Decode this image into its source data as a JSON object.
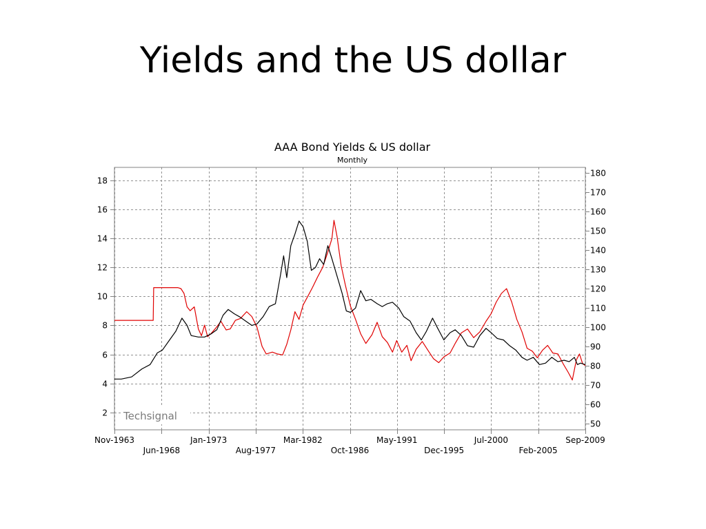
{
  "slide": {
    "title": "Yields and the US dollar"
  },
  "chart_data": {
    "type": "line",
    "title": "AAA Bond Yields & US dollar",
    "subtitle": "Monthly",
    "watermark": "Techsignal",
    "x_range": [
      1963.83,
      2009.67
    ],
    "x_ticks_row1": [
      {
        "label": "Nov-1963",
        "x": 1963.83
      },
      {
        "label": "Jan-1973",
        "x": 1973.0
      },
      {
        "label": "Mar-1982",
        "x": 1982.17
      },
      {
        "label": "May-1991",
        "x": 1991.33
      },
      {
        "label": "Jul-2000",
        "x": 2000.5
      },
      {
        "label": "Sep-2009",
        "x": 2009.67
      }
    ],
    "x_ticks_row2": [
      {
        "label": "Jun-1968",
        "x": 1968.42
      },
      {
        "label": "Aug-1977",
        "x": 1977.58
      },
      {
        "label": "Oct-1986",
        "x": 1986.75
      },
      {
        "label": "Dec-1995",
        "x": 1995.92
      },
      {
        "label": "Feb-2005",
        "x": 2005.08
      }
    ],
    "y_left": {
      "min": 0.8,
      "max": 18.9,
      "ticks": [
        2,
        4,
        6,
        8,
        10,
        12,
        14,
        16,
        18
      ]
    },
    "y_right": {
      "min": 46.6,
      "max": 183.0,
      "ticks": [
        50,
        60,
        70,
        80,
        90,
        100,
        110,
        120,
        130,
        140,
        150,
        160,
        170,
        180
      ]
    },
    "grid": true,
    "colors": {
      "bond_yield": "#000000",
      "us_dollar": "#e00000",
      "grid": "#909090",
      "axis": "#808080"
    },
    "series": [
      {
        "axis": "left",
        "color": "#000000",
        "points": [
          [
            1963.83,
            4.3
          ],
          [
            1964.5,
            4.3
          ],
          [
            1965.5,
            4.45
          ],
          [
            1966.5,
            5.0
          ],
          [
            1967.3,
            5.3
          ],
          [
            1968.0,
            6.1
          ],
          [
            1968.5,
            6.3
          ],
          [
            1969.2,
            7.0
          ],
          [
            1969.8,
            7.6
          ],
          [
            1970.4,
            8.5
          ],
          [
            1970.9,
            8.0
          ],
          [
            1971.3,
            7.3
          ],
          [
            1972.0,
            7.2
          ],
          [
            1972.6,
            7.2
          ],
          [
            1973.2,
            7.4
          ],
          [
            1973.8,
            7.7
          ],
          [
            1974.4,
            8.7
          ],
          [
            1974.9,
            9.1
          ],
          [
            1975.5,
            8.8
          ],
          [
            1976.0,
            8.6
          ],
          [
            1976.6,
            8.3
          ],
          [
            1977.2,
            8.0
          ],
          [
            1977.7,
            8.1
          ],
          [
            1978.3,
            8.6
          ],
          [
            1978.9,
            9.3
          ],
          [
            1979.5,
            9.5
          ],
          [
            1980.0,
            11.5
          ],
          [
            1980.3,
            12.8
          ],
          [
            1980.6,
            11.3
          ],
          [
            1981.0,
            13.5
          ],
          [
            1981.4,
            14.3
          ],
          [
            1981.8,
            15.2
          ],
          [
            1982.2,
            14.8
          ],
          [
            1982.6,
            13.8
          ],
          [
            1983.0,
            11.8
          ],
          [
            1983.4,
            12.0
          ],
          [
            1983.8,
            12.6
          ],
          [
            1984.2,
            12.2
          ],
          [
            1984.6,
            13.5
          ],
          [
            1985.0,
            12.6
          ],
          [
            1985.5,
            11.4
          ],
          [
            1986.0,
            10.2
          ],
          [
            1986.4,
            9.0
          ],
          [
            1986.8,
            8.9
          ],
          [
            1987.3,
            9.2
          ],
          [
            1987.8,
            10.4
          ],
          [
            1988.3,
            9.7
          ],
          [
            1988.8,
            9.8
          ],
          [
            1989.4,
            9.5
          ],
          [
            1989.9,
            9.3
          ],
          [
            1990.4,
            9.5
          ],
          [
            1990.9,
            9.6
          ],
          [
            1991.5,
            9.2
          ],
          [
            1992.0,
            8.6
          ],
          [
            1992.6,
            8.3
          ],
          [
            1993.2,
            7.5
          ],
          [
            1993.7,
            7.0
          ],
          [
            1994.2,
            7.6
          ],
          [
            1994.8,
            8.5
          ],
          [
            1995.3,
            7.8
          ],
          [
            1995.9,
            7.0
          ],
          [
            1996.5,
            7.5
          ],
          [
            1997.0,
            7.7
          ],
          [
            1997.6,
            7.3
          ],
          [
            1998.2,
            6.6
          ],
          [
            1998.8,
            6.5
          ],
          [
            1999.4,
            7.3
          ],
          [
            2000.0,
            7.8
          ],
          [
            2000.5,
            7.5
          ],
          [
            2001.1,
            7.1
          ],
          [
            2001.7,
            7.0
          ],
          [
            2002.3,
            6.6
          ],
          [
            2002.9,
            6.3
          ],
          [
            2003.5,
            5.8
          ],
          [
            2004.0,
            5.6
          ],
          [
            2004.6,
            5.8
          ],
          [
            2005.2,
            5.3
          ],
          [
            2005.8,
            5.4
          ],
          [
            2006.4,
            5.8
          ],
          [
            2007.0,
            5.5
          ],
          [
            2007.6,
            5.6
          ],
          [
            2008.1,
            5.5
          ],
          [
            2008.6,
            5.8
          ],
          [
            2008.9,
            5.3
          ],
          [
            2009.2,
            5.4
          ],
          [
            2009.67,
            5.3
          ]
        ]
      },
      {
        "axis": "right",
        "color": "#e00000",
        "points": [
          [
            1963.83,
            103.5
          ],
          [
            1967.6,
            103.5
          ],
          [
            1967.65,
            120.5
          ],
          [
            1970.0,
            120.5
          ],
          [
            1970.3,
            120.0
          ],
          [
            1970.6,
            117.5
          ],
          [
            1970.9,
            110.5
          ],
          [
            1971.2,
            108.5
          ],
          [
            1971.6,
            110.5
          ],
          [
            1972.0,
            99.0
          ],
          [
            1972.3,
            95.5
          ],
          [
            1972.6,
            101.0
          ],
          [
            1972.9,
            95.0
          ],
          [
            1973.3,
            97.0
          ],
          [
            1973.7,
            99.5
          ],
          [
            1974.2,
            103.0
          ],
          [
            1974.7,
            98.5
          ],
          [
            1975.1,
            99.0
          ],
          [
            1975.6,
            103.5
          ],
          [
            1976.1,
            104.5
          ],
          [
            1976.7,
            108.0
          ],
          [
            1977.2,
            105.5
          ],
          [
            1977.7,
            100.0
          ],
          [
            1978.2,
            90.0
          ],
          [
            1978.6,
            86.0
          ],
          [
            1979.2,
            87.0
          ],
          [
            1979.7,
            86.0
          ],
          [
            1980.2,
            85.5
          ],
          [
            1980.6,
            91.0
          ],
          [
            1981.0,
            98.5
          ],
          [
            1981.4,
            108.0
          ],
          [
            1981.8,
            104.0
          ],
          [
            1982.2,
            111.5
          ],
          [
            1982.7,
            116.5
          ],
          [
            1983.1,
            120.5
          ],
          [
            1983.6,
            126.0
          ],
          [
            1984.1,
            131.0
          ],
          [
            1984.6,
            139.0
          ],
          [
            1985.0,
            146.0
          ],
          [
            1985.2,
            155.5
          ],
          [
            1985.5,
            147.0
          ],
          [
            1985.9,
            132.0
          ],
          [
            1986.3,
            122.0
          ],
          [
            1986.8,
            111.0
          ],
          [
            1987.3,
            104.0
          ],
          [
            1987.8,
            96.5
          ],
          [
            1988.3,
            91.5
          ],
          [
            1988.9,
            96.0
          ],
          [
            1989.4,
            102.5
          ],
          [
            1989.9,
            95.0
          ],
          [
            1990.4,
            92.0
          ],
          [
            1990.9,
            87.0
          ],
          [
            1991.3,
            93.0
          ],
          [
            1991.8,
            87.0
          ],
          [
            1992.3,
            90.5
          ],
          [
            1992.7,
            82.5
          ],
          [
            1993.2,
            88.5
          ],
          [
            1993.8,
            92.5
          ],
          [
            1994.4,
            87.5
          ],
          [
            1994.9,
            83.5
          ],
          [
            1995.4,
            81.5
          ],
          [
            1995.9,
            84.5
          ],
          [
            1996.5,
            86.5
          ],
          [
            1997.0,
            91.5
          ],
          [
            1997.6,
            97.0
          ],
          [
            1998.2,
            99.0
          ],
          [
            1998.8,
            94.5
          ],
          [
            1999.4,
            97.5
          ],
          [
            2000.0,
            103.0
          ],
          [
            2000.5,
            107.0
          ],
          [
            2001.0,
            113.0
          ],
          [
            2001.5,
            117.5
          ],
          [
            2002.0,
            120.0
          ],
          [
            2002.5,
            113.0
          ],
          [
            2003.0,
            104.0
          ],
          [
            2003.5,
            97.5
          ],
          [
            2004.0,
            89.0
          ],
          [
            2004.5,
            87.5
          ],
          [
            2005.0,
            84.0
          ],
          [
            2005.5,
            88.0
          ],
          [
            2006.0,
            90.5
          ],
          [
            2006.5,
            86.5
          ],
          [
            2007.0,
            86.0
          ],
          [
            2007.5,
            81.0
          ],
          [
            2008.0,
            76.5
          ],
          [
            2008.4,
            72.5
          ],
          [
            2008.8,
            83.0
          ],
          [
            2009.1,
            86.0
          ],
          [
            2009.4,
            81.0
          ],
          [
            2009.67,
            80.0
          ]
        ]
      }
    ]
  }
}
